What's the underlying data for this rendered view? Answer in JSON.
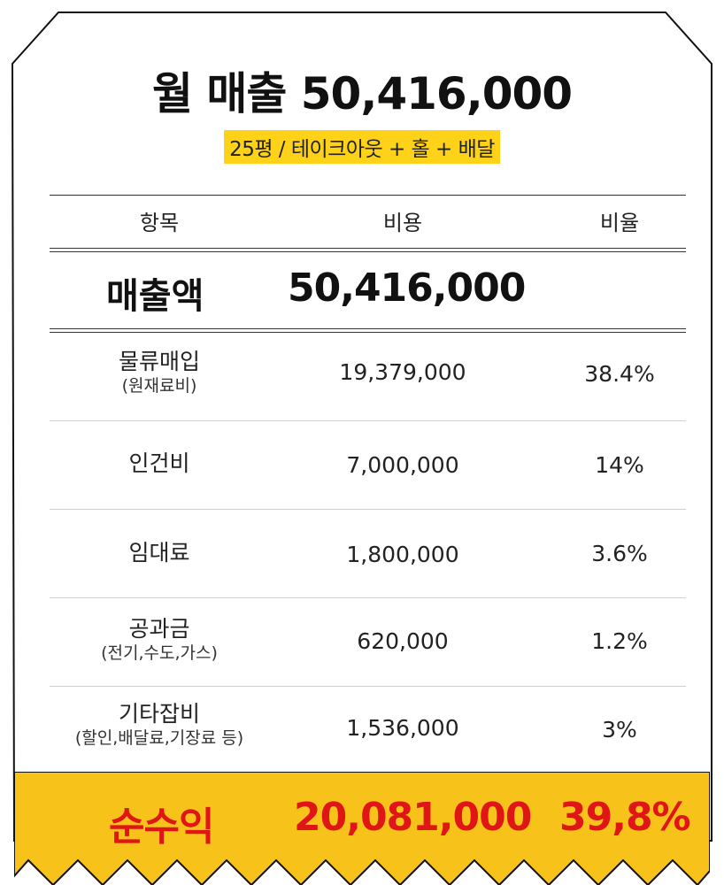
{
  "title": "월 매출 50,416,000",
  "subtitle": "25평 / 테이크아웃 + 홀 + 배달",
  "table": {
    "headers": {
      "item": "항목",
      "cost": "비용",
      "ratio": "비율"
    },
    "revenue": {
      "label": "매출액",
      "value": "50,416,000"
    },
    "rows": [
      {
        "name": "물류매입",
        "sub": "(원재료비)",
        "cost": "19,379,000",
        "ratio": "38.4%"
      },
      {
        "name": "인건비",
        "sub": "",
        "cost": "7,000,000",
        "ratio": "14%"
      },
      {
        "name": "임대료",
        "sub": "",
        "cost": "1,800,000",
        "ratio": "3.6%"
      },
      {
        "name": "공과금",
        "sub": "(전기,수도,가스)",
        "cost": "620,000",
        "ratio": "1.2%"
      },
      {
        "name": "기타잡비",
        "sub": "(할인,배달료,기장료 등)",
        "cost": "1,536,000",
        "ratio": "3%"
      }
    ],
    "profit": {
      "label": "순수익",
      "value": "20,081,000",
      "ratio": "39,8%"
    }
  },
  "colors": {
    "highlight": "#ffd21a",
    "band": "#f7c21a",
    "profit_text": "#e01515",
    "border": "#111111"
  }
}
